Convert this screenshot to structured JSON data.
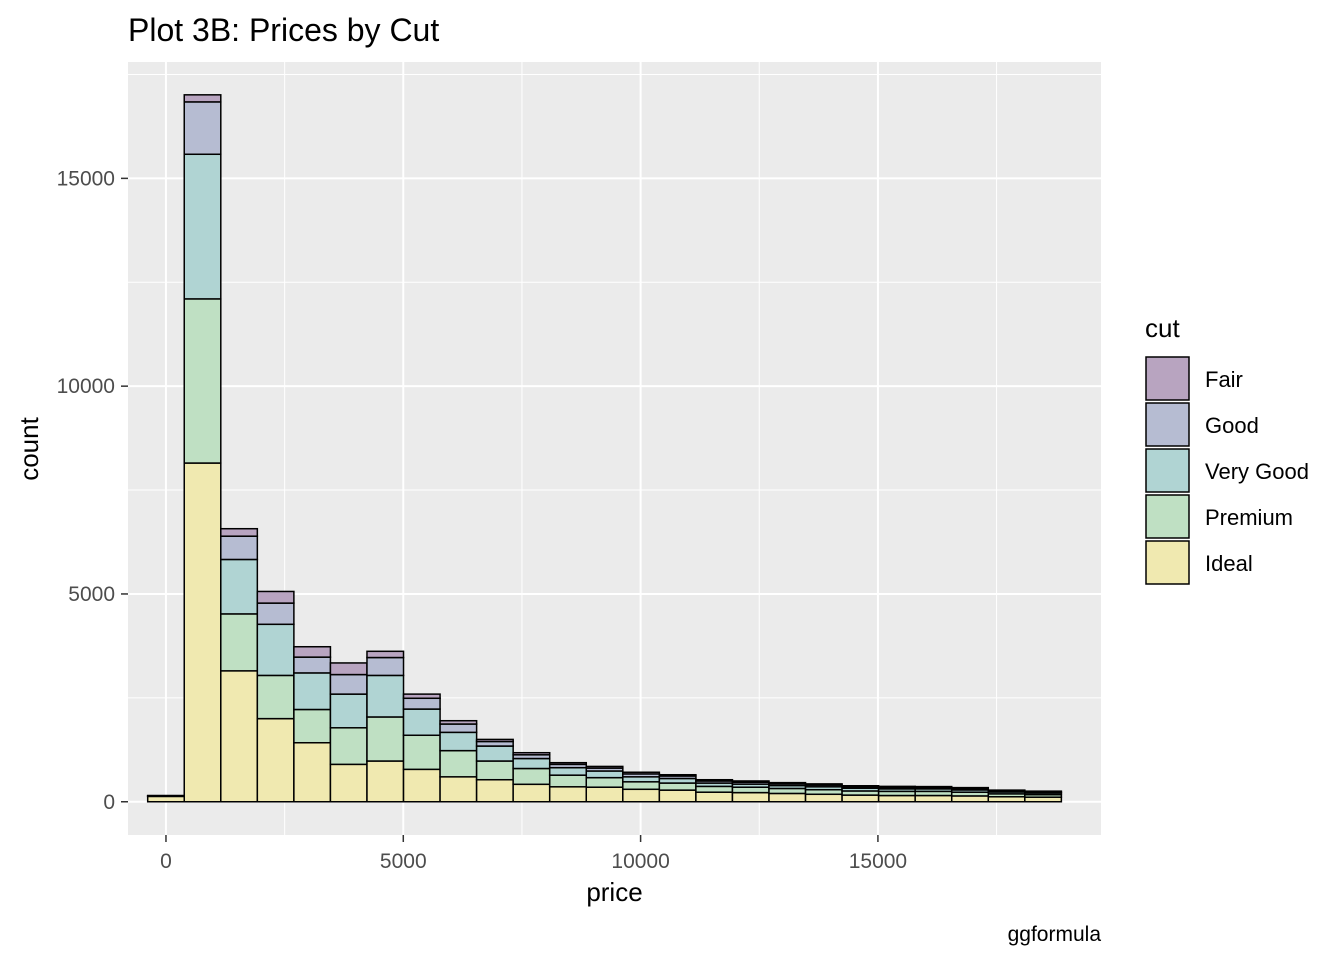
{
  "chart_data": {
    "type": "bar",
    "stacked": true,
    "title": "Plot 3B: Prices by Cut",
    "xlabel": "price",
    "ylabel": "count",
    "caption": "ggformula",
    "xlim": [
      -800,
      19700
    ],
    "ylim": [
      -800,
      17800
    ],
    "x_ticks": [
      0,
      5000,
      10000,
      15000
    ],
    "y_ticks": [
      0,
      5000,
      10000,
      15000
    ],
    "bin_width": 770,
    "bin_centers": [
      0,
      770,
      1540,
      2310,
      3080,
      3850,
      4620,
      5390,
      6160,
      6930,
      7700,
      8470,
      9240,
      10010,
      10780,
      11550,
      12320,
      13090,
      13860,
      14630,
      15400,
      16170,
      16940,
      17710,
      18480
    ],
    "series": [
      {
        "name": "Ideal",
        "color": "#F0E9B0",
        "values": [
          130,
          8150,
          3150,
          2000,
          1420,
          900,
          980,
          780,
          600,
          530,
          420,
          360,
          350,
          300,
          280,
          230,
          220,
          200,
          180,
          160,
          150,
          150,
          140,
          120,
          110
        ]
      },
      {
        "name": "Premium",
        "color": "#BFE0C3",
        "values": [
          10,
          3950,
          1370,
          1040,
          800,
          880,
          1060,
          820,
          630,
          450,
          380,
          280,
          230,
          180,
          170,
          140,
          130,
          120,
          110,
          100,
          100,
          100,
          90,
          70,
          60
        ]
      },
      {
        "name": "Very Good",
        "color": "#B0D4D3",
        "values": [
          5,
          3480,
          1310,
          1230,
          880,
          810,
          1000,
          630,
          440,
          360,
          240,
          180,
          160,
          120,
          110,
          80,
          75,
          70,
          70,
          65,
          60,
          60,
          55,
          45,
          40
        ]
      },
      {
        "name": "Good",
        "color": "#B6BCD2",
        "values": [
          5,
          1260,
          560,
          510,
          380,
          470,
          430,
          260,
          200,
          110,
          90,
          80,
          70,
          70,
          60,
          50,
          45,
          40,
          40,
          35,
          35,
          30,
          30,
          25,
          25
        ]
      },
      {
        "name": "Fair",
        "color": "#B8A4C0",
        "values": [
          0,
          170,
          180,
          280,
          250,
          280,
          150,
          100,
          80,
          50,
          50,
          40,
          40,
          40,
          30,
          30,
          30,
          30,
          30,
          25,
          25,
          25,
          25,
          20,
          20
        ]
      }
    ],
    "legend": {
      "title": "cut",
      "position": "right",
      "order": [
        "Fair",
        "Good",
        "Very Good",
        "Premium",
        "Ideal"
      ]
    },
    "grid": true
  }
}
